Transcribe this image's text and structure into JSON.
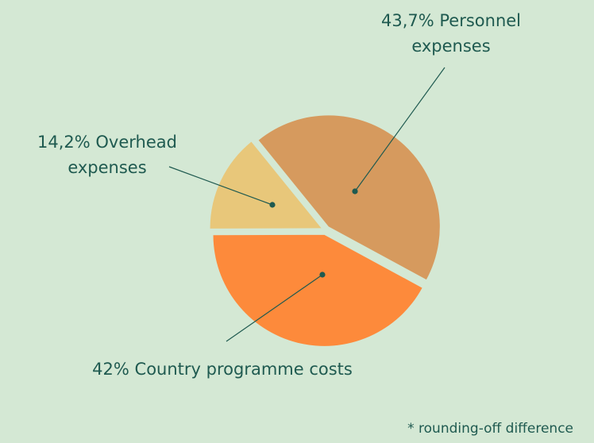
{
  "chart_data": {
    "type": "pie",
    "categories": [
      "Personnel expenses",
      "Country programme costs",
      "Overhead expenses"
    ],
    "values": [
      43.7,
      42,
      14.2
    ],
    "value_labels": [
      "43,7%",
      "42%",
      "14,2%"
    ],
    "colors": [
      "#d69a5e",
      "#fd8a3b",
      "#e8c77a"
    ],
    "note": "* rounding-off difference"
  }
}
